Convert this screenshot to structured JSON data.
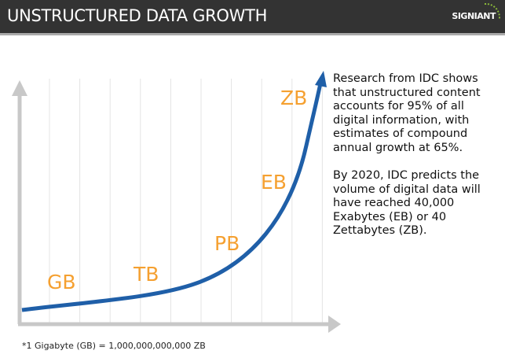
{
  "header": {
    "title": "UNSTRUCTURED DATA GROWTH",
    "logo": "SIGNIANT"
  },
  "chart_data": {
    "type": "line",
    "title": "",
    "xlabel": "",
    "ylabel": "",
    "grid": true,
    "categories": [
      "GB",
      "TB",
      "PB",
      "EB",
      "ZB"
    ],
    "colors": {
      "line": "#1f5fa8",
      "labels": "#f5a030",
      "axes": "#c8c8c8"
    }
  },
  "text": {
    "p1": "Research from IDC shows that unstructured content accounts for 95% of all digital information, with estimates of compound annual growth at 65%.",
    "p2": "By 2020, IDC predicts the volume of digital data will have reached 40,000 Exabytes (EB) or 40 Zettabytes (ZB)."
  },
  "footnote": "*1 Gigabyte (GB) = 1,000,000,000,000 ZB"
}
